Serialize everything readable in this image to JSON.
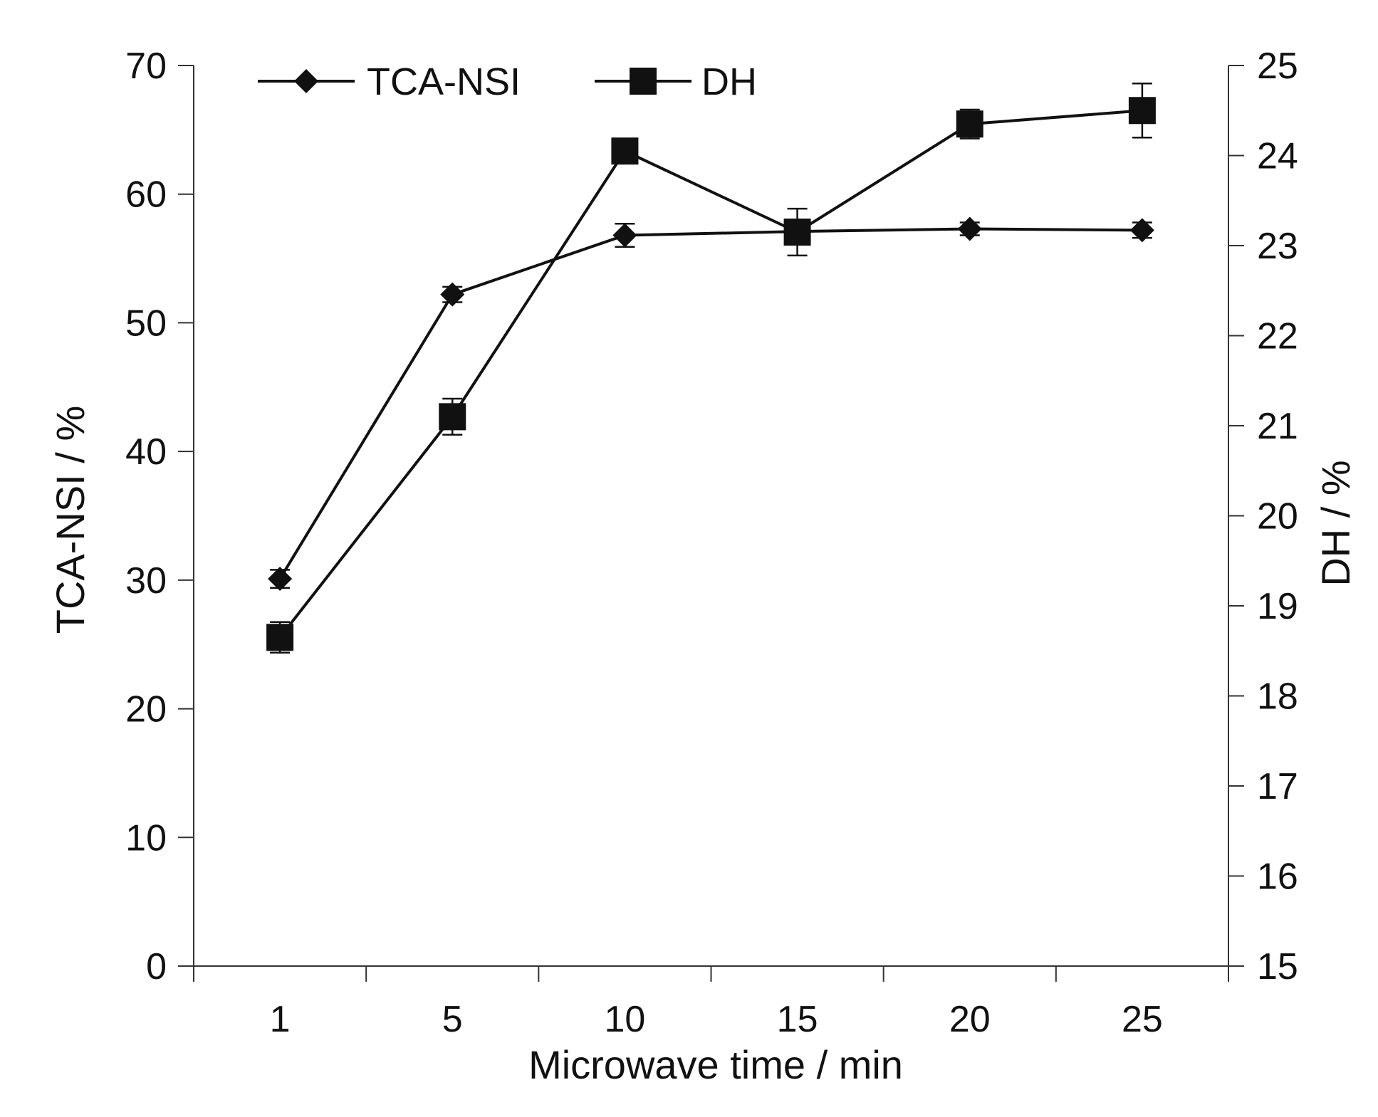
{
  "chart_data": {
    "type": "line",
    "title": "",
    "xlabel": "Microwave time / min",
    "ylabel": "TCA-NSI / %",
    "ylabel_right": "DH / %",
    "categories": [
      "1",
      "5",
      "10",
      "15",
      "20",
      "25"
    ],
    "ylim": [
      0,
      70
    ],
    "ylim_right": [
      15,
      25
    ],
    "yticks": [
      "0",
      "10",
      "20",
      "30",
      "40",
      "50",
      "60",
      "70"
    ],
    "yticks_right": [
      "15",
      "16",
      "17",
      "18",
      "19",
      "20",
      "21",
      "22",
      "23",
      "24",
      "25"
    ],
    "grid": false,
    "legend_position": "top",
    "series": [
      {
        "name": "TCA-NSI",
        "axis": "left",
        "marker": "diamond",
        "values": [
          30.1,
          52.2,
          56.8,
          57.1,
          57.3,
          57.2
        ],
        "errors": [
          0.7,
          0.6,
          0.9,
          0.5,
          0.5,
          0.6
        ]
      },
      {
        "name": "DH",
        "axis": "right",
        "marker": "square",
        "values": [
          18.65,
          21.1,
          24.05,
          23.15,
          24.35,
          24.5
        ],
        "errors": [
          0.17,
          0.2,
          0.13,
          0.26,
          0.16,
          0.3
        ]
      }
    ],
    "colors": {
      "line": "#111111",
      "axis": "#333333",
      "background": "#ffffff"
    }
  }
}
